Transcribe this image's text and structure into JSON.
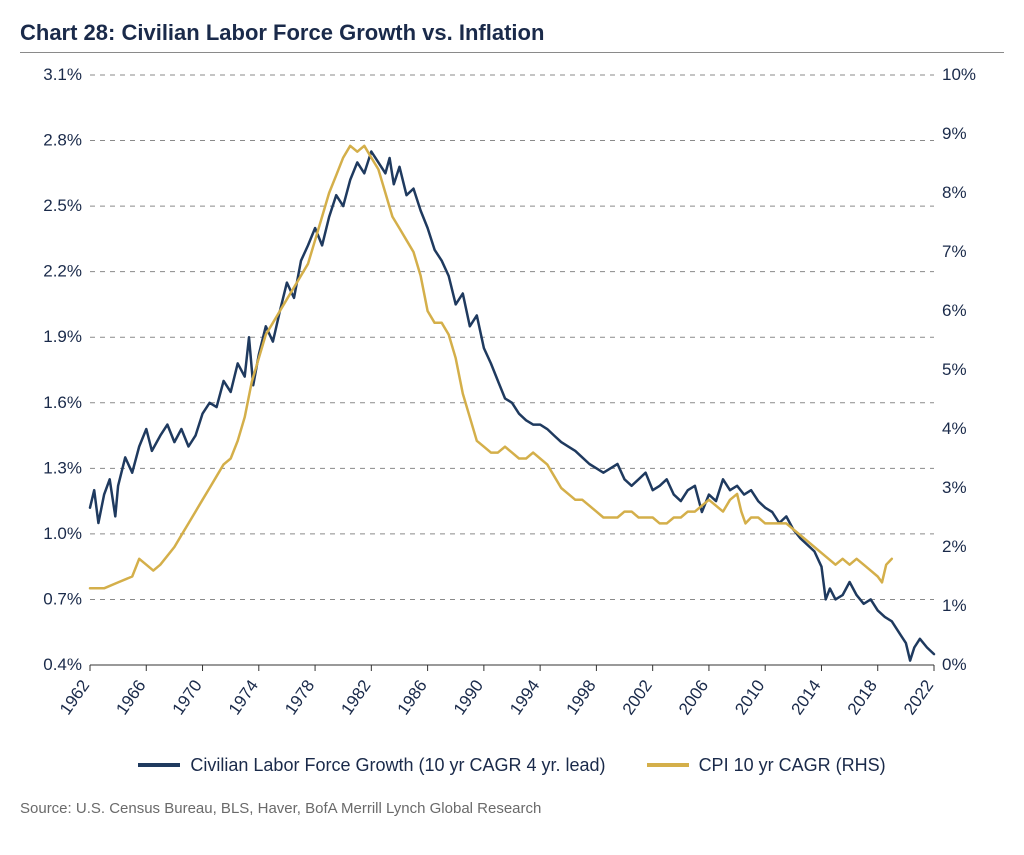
{
  "title": "Chart 28: Civilian Labor Force Growth vs. Inflation",
  "source": "Source: U.S. Census Bureau, BLS, Haver, BofA Merrill Lynch Global Research",
  "chart": {
    "type": "line",
    "background_color": "#ffffff",
    "grid_color": "#8a8a8a",
    "grid_dash": "5,5",
    "axis_color": "#333333",
    "axis_line_width": 1,
    "tick_font_size": 17,
    "tick_color": "#1a2a4a",
    "x": {
      "min": 1962,
      "max": 2022,
      "ticks": [
        1962,
        1966,
        1970,
        1974,
        1978,
        1982,
        1986,
        1990,
        1994,
        1998,
        2002,
        2006,
        2010,
        2014,
        2018,
        2022
      ],
      "label_rotation": -55
    },
    "y_left": {
      "min": 0.4,
      "max": 3.1,
      "ticks": [
        0.4,
        0.7,
        1.0,
        1.3,
        1.6,
        1.9,
        2.2,
        2.5,
        2.8,
        3.1
      ],
      "tick_format_suffix": "%",
      "decimals": 1
    },
    "y_right": {
      "min": 0,
      "max": 10,
      "ticks": [
        0,
        1,
        2,
        3,
        4,
        5,
        6,
        7,
        8,
        9,
        10
      ],
      "tick_format_suffix": "%",
      "decimals": 0
    },
    "series": [
      {
        "name": "Civilian Labor Force Growth (10 yr CAGR 4 yr. lead)",
        "axis": "left",
        "color": "#1f3a5f",
        "line_width": 2.5,
        "legend_label": "Civilian Labor Force Growth (10 yr CAGR 4 yr. lead)",
        "data": [
          [
            1962,
            1.12
          ],
          [
            1962.3,
            1.2
          ],
          [
            1962.6,
            1.05
          ],
          [
            1963,
            1.18
          ],
          [
            1963.4,
            1.25
          ],
          [
            1963.8,
            1.08
          ],
          [
            1964,
            1.22
          ],
          [
            1964.5,
            1.35
          ],
          [
            1965,
            1.28
          ],
          [
            1965.5,
            1.4
          ],
          [
            1966,
            1.48
          ],
          [
            1966.4,
            1.38
          ],
          [
            1967,
            1.45
          ],
          [
            1967.5,
            1.5
          ],
          [
            1968,
            1.42
          ],
          [
            1968.5,
            1.48
          ],
          [
            1969,
            1.4
          ],
          [
            1969.5,
            1.45
          ],
          [
            1970,
            1.55
          ],
          [
            1970.5,
            1.6
          ],
          [
            1971,
            1.58
          ],
          [
            1971.5,
            1.7
          ],
          [
            1972,
            1.65
          ],
          [
            1972.5,
            1.78
          ],
          [
            1973,
            1.72
          ],
          [
            1973.3,
            1.9
          ],
          [
            1973.6,
            1.68
          ],
          [
            1974,
            1.82
          ],
          [
            1974.5,
            1.95
          ],
          [
            1975,
            1.88
          ],
          [
            1975.5,
            2.02
          ],
          [
            1976,
            2.15
          ],
          [
            1976.5,
            2.08
          ],
          [
            1977,
            2.25
          ],
          [
            1977.5,
            2.32
          ],
          [
            1978,
            2.4
          ],
          [
            1978.5,
            2.32
          ],
          [
            1979,
            2.45
          ],
          [
            1979.5,
            2.55
          ],
          [
            1980,
            2.5
          ],
          [
            1980.5,
            2.62
          ],
          [
            1981,
            2.7
          ],
          [
            1981.5,
            2.65
          ],
          [
            1982,
            2.75
          ],
          [
            1982.5,
            2.7
          ],
          [
            1983,
            2.65
          ],
          [
            1983.3,
            2.72
          ],
          [
            1983.6,
            2.6
          ],
          [
            1984,
            2.68
          ],
          [
            1984.5,
            2.55
          ],
          [
            1985,
            2.58
          ],
          [
            1985.5,
            2.48
          ],
          [
            1986,
            2.4
          ],
          [
            1986.5,
            2.3
          ],
          [
            1987,
            2.25
          ],
          [
            1987.5,
            2.18
          ],
          [
            1988,
            2.05
          ],
          [
            1988.5,
            2.1
          ],
          [
            1989,
            1.95
          ],
          [
            1989.5,
            2.0
          ],
          [
            1990,
            1.85
          ],
          [
            1990.5,
            1.78
          ],
          [
            1991,
            1.7
          ],
          [
            1991.5,
            1.62
          ],
          [
            1992,
            1.6
          ],
          [
            1992.5,
            1.55
          ],
          [
            1993,
            1.52
          ],
          [
            1993.5,
            1.5
          ],
          [
            1994,
            1.5
          ],
          [
            1994.5,
            1.48
          ],
          [
            1995,
            1.45
          ],
          [
            1995.5,
            1.42
          ],
          [
            1996,
            1.4
          ],
          [
            1996.5,
            1.38
          ],
          [
            1997,
            1.35
          ],
          [
            1997.5,
            1.32
          ],
          [
            1998,
            1.3
          ],
          [
            1998.5,
            1.28
          ],
          [
            1999,
            1.3
          ],
          [
            1999.5,
            1.32
          ],
          [
            2000,
            1.25
          ],
          [
            2000.5,
            1.22
          ],
          [
            2001,
            1.25
          ],
          [
            2001.5,
            1.28
          ],
          [
            2002,
            1.2
          ],
          [
            2002.5,
            1.22
          ],
          [
            2003,
            1.25
          ],
          [
            2003.5,
            1.18
          ],
          [
            2004,
            1.15
          ],
          [
            2004.5,
            1.2
          ],
          [
            2005,
            1.22
          ],
          [
            2005.5,
            1.1
          ],
          [
            2006,
            1.18
          ],
          [
            2006.5,
            1.15
          ],
          [
            2007,
            1.25
          ],
          [
            2007.5,
            1.2
          ],
          [
            2008,
            1.22
          ],
          [
            2008.5,
            1.18
          ],
          [
            2009,
            1.2
          ],
          [
            2009.5,
            1.15
          ],
          [
            2010,
            1.12
          ],
          [
            2010.5,
            1.1
          ],
          [
            2011,
            1.05
          ],
          [
            2011.5,
            1.08
          ],
          [
            2012,
            1.02
          ],
          [
            2012.5,
            0.98
          ],
          [
            2013,
            0.95
          ],
          [
            2013.5,
            0.92
          ],
          [
            2014,
            0.85
          ],
          [
            2014.3,
            0.7
          ],
          [
            2014.6,
            0.75
          ],
          [
            2015,
            0.7
          ],
          [
            2015.5,
            0.72
          ],
          [
            2016,
            0.78
          ],
          [
            2016.5,
            0.72
          ],
          [
            2017,
            0.68
          ],
          [
            2017.5,
            0.7
          ],
          [
            2018,
            0.65
          ],
          [
            2018.5,
            0.62
          ],
          [
            2019,
            0.6
          ],
          [
            2019.5,
            0.55
          ],
          [
            2020,
            0.5
          ],
          [
            2020.3,
            0.42
          ],
          [
            2020.6,
            0.48
          ],
          [
            2021,
            0.52
          ],
          [
            2021.5,
            0.48
          ],
          [
            2022,
            0.45
          ]
        ]
      },
      {
        "name": "CPI 10 yr CAGR (RHS)",
        "axis": "right",
        "color": "#d4af4a",
        "line_width": 2.5,
        "legend_label": "CPI 10 yr CAGR (RHS)",
        "data": [
          [
            1962,
            1.3
          ],
          [
            1963,
            1.3
          ],
          [
            1964,
            1.4
          ],
          [
            1965,
            1.5
          ],
          [
            1965.5,
            1.8
          ],
          [
            1966,
            1.7
          ],
          [
            1966.5,
            1.6
          ],
          [
            1967,
            1.7
          ],
          [
            1968,
            2.0
          ],
          [
            1968.5,
            2.2
          ],
          [
            1969,
            2.4
          ],
          [
            1969.5,
            2.6
          ],
          [
            1970,
            2.8
          ],
          [
            1970.5,
            3.0
          ],
          [
            1971,
            3.2
          ],
          [
            1971.5,
            3.4
          ],
          [
            1972,
            3.5
          ],
          [
            1972.5,
            3.8
          ],
          [
            1973,
            4.2
          ],
          [
            1973.5,
            4.8
          ],
          [
            1974,
            5.2
          ],
          [
            1974.5,
            5.6
          ],
          [
            1975,
            5.8
          ],
          [
            1975.5,
            6.0
          ],
          [
            1976,
            6.2
          ],
          [
            1976.5,
            6.4
          ],
          [
            1977,
            6.6
          ],
          [
            1977.5,
            6.8
          ],
          [
            1978,
            7.2
          ],
          [
            1978.5,
            7.6
          ],
          [
            1979,
            8.0
          ],
          [
            1979.5,
            8.3
          ],
          [
            1980,
            8.6
          ],
          [
            1980.5,
            8.8
          ],
          [
            1981,
            8.7
          ],
          [
            1981.5,
            8.8
          ],
          [
            1982,
            8.6
          ],
          [
            1982.5,
            8.4
          ],
          [
            1983,
            8.0
          ],
          [
            1983.5,
            7.6
          ],
          [
            1984,
            7.4
          ],
          [
            1984.5,
            7.2
          ],
          [
            1985,
            7.0
          ],
          [
            1985.5,
            6.6
          ],
          [
            1986,
            6.0
          ],
          [
            1986.5,
            5.8
          ],
          [
            1987,
            5.8
          ],
          [
            1987.5,
            5.6
          ],
          [
            1988,
            5.2
          ],
          [
            1988.5,
            4.6
          ],
          [
            1989,
            4.2
          ],
          [
            1989.5,
            3.8
          ],
          [
            1990,
            3.7
          ],
          [
            1990.5,
            3.6
          ],
          [
            1991,
            3.6
          ],
          [
            1991.5,
            3.7
          ],
          [
            1992,
            3.6
          ],
          [
            1992.5,
            3.5
          ],
          [
            1993,
            3.5
          ],
          [
            1993.5,
            3.6
          ],
          [
            1994,
            3.5
          ],
          [
            1994.5,
            3.4
          ],
          [
            1995,
            3.2
          ],
          [
            1995.5,
            3.0
          ],
          [
            1996,
            2.9
          ],
          [
            1996.5,
            2.8
          ],
          [
            1997,
            2.8
          ],
          [
            1997.5,
            2.7
          ],
          [
            1998,
            2.6
          ],
          [
            1998.5,
            2.5
          ],
          [
            1999,
            2.5
          ],
          [
            1999.5,
            2.5
          ],
          [
            2000,
            2.6
          ],
          [
            2000.5,
            2.6
          ],
          [
            2001,
            2.5
          ],
          [
            2001.5,
            2.5
          ],
          [
            2002,
            2.5
          ],
          [
            2002.5,
            2.4
          ],
          [
            2003,
            2.4
          ],
          [
            2003.5,
            2.5
          ],
          [
            2004,
            2.5
          ],
          [
            2004.5,
            2.6
          ],
          [
            2005,
            2.6
          ],
          [
            2005.5,
            2.7
          ],
          [
            2006,
            2.8
          ],
          [
            2006.5,
            2.7
          ],
          [
            2007,
            2.6
          ],
          [
            2007.5,
            2.8
          ],
          [
            2008,
            2.9
          ],
          [
            2008.3,
            2.6
          ],
          [
            2008.6,
            2.4
          ],
          [
            2009,
            2.5
          ],
          [
            2009.5,
            2.5
          ],
          [
            2010,
            2.4
          ],
          [
            2010.5,
            2.4
          ],
          [
            2011,
            2.4
          ],
          [
            2011.5,
            2.4
          ],
          [
            2012,
            2.3
          ],
          [
            2012.5,
            2.2
          ],
          [
            2013,
            2.1
          ],
          [
            2013.5,
            2.0
          ],
          [
            2014,
            1.9
          ],
          [
            2014.5,
            1.8
          ],
          [
            2015,
            1.7
          ],
          [
            2015.5,
            1.8
          ],
          [
            2016,
            1.7
          ],
          [
            2016.5,
            1.8
          ],
          [
            2017,
            1.7
          ],
          [
            2017.5,
            1.6
          ],
          [
            2018,
            1.5
          ],
          [
            2018.3,
            1.4
          ],
          [
            2018.6,
            1.7
          ],
          [
            2019,
            1.8
          ]
        ]
      }
    ]
  },
  "legend": {
    "items": [
      {
        "label": "Civilian Labor Force Growth (10 yr CAGR 4 yr. lead)",
        "color": "#1f3a5f"
      },
      {
        "label": "CPI 10 yr CAGR (RHS)",
        "color": "#d4af4a"
      }
    ]
  }
}
